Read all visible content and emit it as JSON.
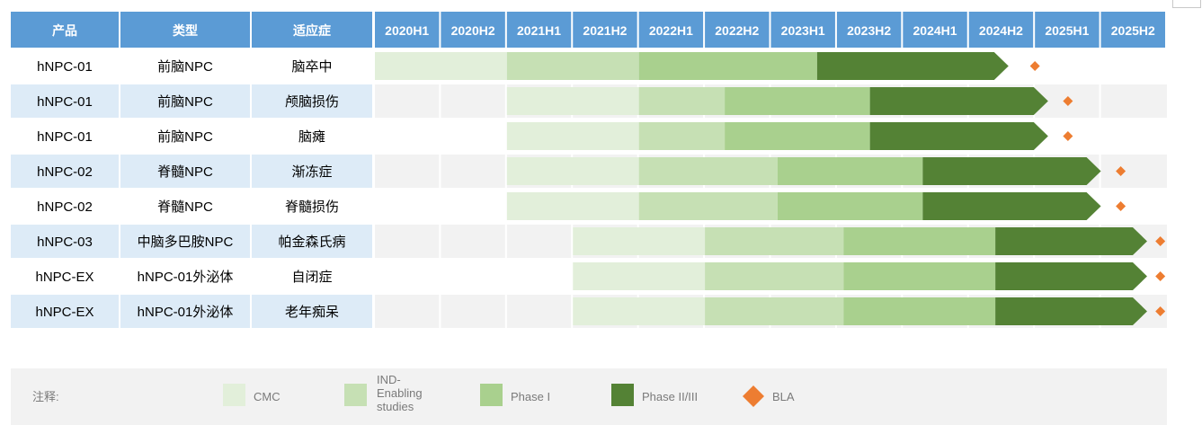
{
  "table": {
    "headers": {
      "product": "产品",
      "type": "类型",
      "indication": "适应症"
    },
    "periods": [
      "2020H1",
      "2020H2",
      "2021H1",
      "2021H2",
      "2022H1",
      "2022H2",
      "2023H1",
      "2023H2",
      "2024H1",
      "2024H2",
      "2025H1",
      "2025H2"
    ],
    "rows": [
      {
        "product": "hNPC-01",
        "type": "前脑NPC",
        "indication": "脑卒中"
      },
      {
        "product": "hNPC-01",
        "type": "前脑NPC",
        "indication": "颅脑损伤"
      },
      {
        "product": "hNPC-01",
        "type": "前脑NPC",
        "indication": "脑瘫"
      },
      {
        "product": "hNPC-02",
        "type": "脊髓NPC",
        "indication": "渐冻症"
      },
      {
        "product": "hNPC-02",
        "type": "脊髓NPC",
        "indication": "脊髓损伤"
      },
      {
        "product": "hNPC-03",
        "type": "中脑多巴胺NPC",
        "indication": "帕金森氏病"
      },
      {
        "product": "hNPC-EX",
        "type": "hNPC-01外泌体",
        "indication": "自闭症"
      },
      {
        "product": "hNPC-EX",
        "type": "hNPC-01外泌体",
        "indication": "老年痴呆"
      }
    ]
  },
  "chart_data": {
    "type": "gantt",
    "time_unit": "half-year periods (2020H1 = 0)",
    "phases": [
      "CMC",
      "IND-Enabling studies",
      "Phase I",
      "Phase II/III"
    ],
    "rows": [
      {
        "product": "hNPC-01",
        "indication": "脑卒中",
        "segments": [
          [
            0,
            2
          ],
          [
            2,
            4
          ],
          [
            4,
            6.7
          ],
          [
            6.7,
            9.6
          ]
        ],
        "bla": 10.0
      },
      {
        "product": "hNPC-01",
        "indication": "颅脑损伤",
        "segments": [
          [
            2,
            4
          ],
          [
            4,
            5.3
          ],
          [
            5.3,
            7.5
          ],
          [
            7.5,
            10.2
          ]
        ],
        "bla": 10.5
      },
      {
        "product": "hNPC-01",
        "indication": "脑瘫",
        "segments": [
          [
            2,
            4
          ],
          [
            4,
            5.3
          ],
          [
            5.3,
            7.5
          ],
          [
            7.5,
            10.2
          ]
        ],
        "bla": 10.5
      },
      {
        "product": "hNPC-02",
        "indication": "渐冻症",
        "segments": [
          [
            2,
            4
          ],
          [
            4,
            6.1
          ],
          [
            6.1,
            8.3
          ],
          [
            8.3,
            11.0
          ]
        ],
        "bla": 11.3
      },
      {
        "product": "hNPC-02",
        "indication": "脊髓损伤",
        "segments": [
          [
            2,
            4
          ],
          [
            4,
            6.1
          ],
          [
            6.1,
            8.3
          ],
          [
            8.3,
            11.0
          ]
        ],
        "bla": 11.3
      },
      {
        "product": "hNPC-03",
        "indication": "帕金森氏病",
        "segments": [
          [
            3,
            5
          ],
          [
            5,
            7.1
          ],
          [
            7.1,
            9.4
          ],
          [
            9.4,
            11.7
          ]
        ],
        "bla": 11.9
      },
      {
        "product": "hNPC-EX",
        "indication": "自闭症",
        "segments": [
          [
            3,
            5
          ],
          [
            5,
            7.1
          ],
          [
            7.1,
            9.4
          ],
          [
            9.4,
            11.7
          ]
        ],
        "bla": 11.9
      },
      {
        "product": "hNPC-EX",
        "indication": "老年痴呆",
        "segments": [
          [
            3,
            5
          ],
          [
            5,
            7.1
          ],
          [
            7.1,
            9.4
          ],
          [
            9.4,
            11.7
          ]
        ],
        "bla": 11.9
      }
    ]
  },
  "legend": {
    "title": "注释:",
    "items": [
      {
        "label": "CMC",
        "color": "#e2efda"
      },
      {
        "label": "IND-Enabling studies",
        "label_lines": [
          "IND-",
          "Enabling",
          "studies"
        ],
        "color": "#c6e0b4"
      },
      {
        "label": "Phase I",
        "color": "#a9d08e"
      },
      {
        "label": "Phase II/III",
        "color": "#548235"
      },
      {
        "label": "BLA",
        "color": "#ed7d31"
      }
    ]
  },
  "colors": {
    "header_bg": "#5b9bd5",
    "header_text": "#ffffff",
    "row_highlight": "#ddebf7",
    "track_bg": "#f2f2f2",
    "legend_bg": "#f2f2f2"
  }
}
